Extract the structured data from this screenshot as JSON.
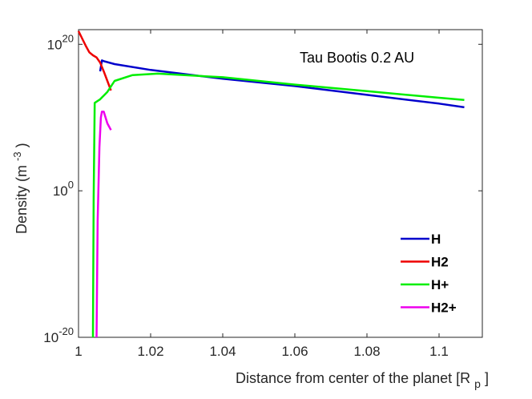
{
  "chart_data": {
    "type": "line",
    "title": "",
    "annotation": "Tau Bootis 0.2 AU",
    "xlabel": {
      "text": "Distance from center of the planet [R",
      "subscript": "p",
      "suffix": "]"
    },
    "ylabel": {
      "text": "Density (m",
      "superscript": "-3",
      "suffix": ")"
    },
    "xlim": [
      1.0,
      1.112
    ],
    "ylim_log10": [
      -20,
      22
    ],
    "yscale": "log",
    "grid": false,
    "legend_position": "bottom-right",
    "x_ticks": [
      {
        "value": 1.0,
        "label": "1"
      },
      {
        "value": 1.02,
        "label": "1.02"
      },
      {
        "value": 1.04,
        "label": "1.04"
      },
      {
        "value": 1.06,
        "label": "1.06"
      },
      {
        "value": 1.08,
        "label": "1.08"
      },
      {
        "value": 1.1,
        "label": "1.1"
      }
    ],
    "y_ticks": [
      {
        "log10": 20,
        "base": "10",
        "exp": "20"
      },
      {
        "log10": 0,
        "base": "10",
        "exp": "0"
      },
      {
        "log10": -20,
        "base": "10",
        "exp": "-20"
      }
    ],
    "series": [
      {
        "name": "H",
        "color": "#0000cc",
        "x": [
          1.006,
          1.0065,
          1.007,
          1.01,
          1.02,
          1.04,
          1.06,
          1.08,
          1.1,
          1.107
        ],
        "log10_y": [
          16.3,
          17.8,
          17.7,
          17.3,
          16.5,
          15.3,
          14.3,
          13.1,
          11.9,
          11.4
        ]
      },
      {
        "name": "H2",
        "color": "#ee0000",
        "x": [
          1.0,
          1.001,
          1.002,
          1.003,
          1.004,
          1.005,
          1.006,
          1.007,
          1.008,
          1.009
        ],
        "log10_y": [
          21.8,
          20.8,
          19.8,
          18.9,
          18.5,
          18.2,
          17.5,
          16.3,
          15.0,
          13.7
        ]
      },
      {
        "name": "H+",
        "color": "#00ee00",
        "x": [
          1.004,
          1.0042,
          1.0045,
          1.006,
          1.008,
          1.01,
          1.015,
          1.022,
          1.04,
          1.06,
          1.08,
          1.1,
          1.107
        ],
        "log10_y": [
          -20,
          -1,
          12.0,
          12.5,
          13.5,
          15.0,
          15.8,
          16.0,
          15.5,
          14.5,
          13.6,
          12.7,
          12.4
        ]
      },
      {
        "name": "H2+",
        "color": "#ee00ee",
        "x": [
          1.005,
          1.0053,
          1.0058,
          1.0062,
          1.0065,
          1.007,
          1.008,
          1.009
        ],
        "log10_y": [
          -20,
          -4,
          6,
          10.0,
          10.8,
          10.8,
          9.2,
          8.3
        ]
      }
    ]
  }
}
